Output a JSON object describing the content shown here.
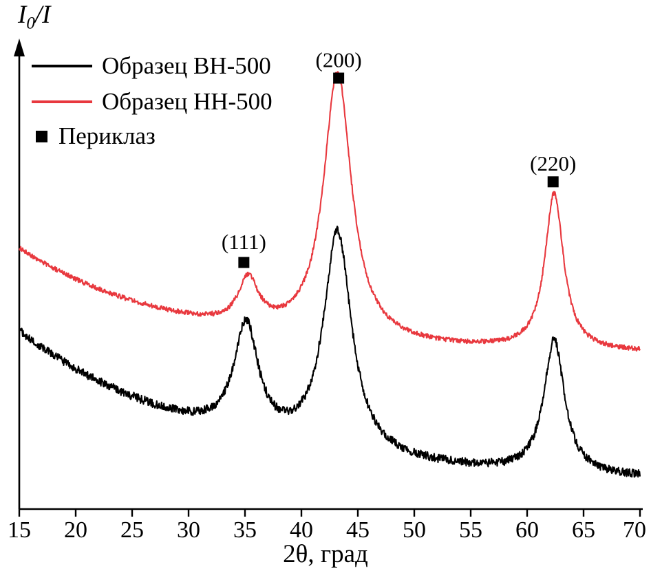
{
  "figure": {
    "background": "#ffffff"
  },
  "chart_data": {
    "type": "line",
    "title": "",
    "xlabel": "2θ, град",
    "ylabel": "I0/I",
    "ylabel_parts": {
      "base": "I",
      "sub": "0",
      "rest": "/I"
    },
    "xlim": [
      15,
      70
    ],
    "ylim": [
      0,
      100
    ],
    "x_ticks": [
      15,
      20,
      25,
      30,
      35,
      40,
      45,
      50,
      55,
      60,
      65,
      70
    ],
    "y_ticks": [],
    "grid": false,
    "y_axis_arrow": true,
    "legend": {
      "position": "top-left",
      "entries": [
        {
          "label": "Образец ВН-500",
          "type": "line",
          "color": "#000000"
        },
        {
          "label": "Образец НН-500",
          "type": "line",
          "color": "#e8383e"
        },
        {
          "label": "Периклаз",
          "type": "square-marker",
          "color": "#000000"
        }
      ]
    },
    "series": [
      {
        "name": "Образец НН-500",
        "slug": "nn-500",
        "color": "#e8383e",
        "baseline": {
          "offset": 33.5,
          "amp": 23,
          "tau": 14
        },
        "peaks": [
          {
            "hkl": "(111)",
            "center": 35.3,
            "amplitude": 10,
            "width": 1.1
          },
          {
            "hkl": "(200)",
            "center": 43.2,
            "amplitude": 58,
            "width": 1.5
          },
          {
            "hkl": "(220)",
            "center": 62.4,
            "amplitude": 34,
            "width": 1.0
          }
        ],
        "noise": 0.5
      },
      {
        "name": "Образец ВН-500",
        "slug": "vn-500",
        "color": "#000000",
        "baseline": {
          "offset": 5.5,
          "amp": 33,
          "tau": 17
        },
        "peaks": [
          {
            "hkl": "(111)",
            "center": 35.1,
            "amplitude": 24,
            "width": 1.3
          },
          {
            "hkl": "(200)",
            "center": 43.2,
            "amplitude": 48,
            "width": 1.5
          },
          {
            "hkl": "(220)",
            "center": 62.4,
            "amplitude": 29,
            "width": 1.1
          }
        ],
        "noise": 0.9
      }
    ],
    "annotations": [
      {
        "label": "(111)",
        "x": 34.9,
        "text_y": 58.0,
        "marker_y": 53.5
      },
      {
        "label": "(200)",
        "x": 43.3,
        "text_y": 97.5,
        "marker_y": 93.5
      },
      {
        "label": "(220)",
        "x": 62.3,
        "text_y": 75.0,
        "marker_y": 71.0
      }
    ],
    "phase_marker": {
      "label": "Периклаз",
      "symbol": "■"
    }
  }
}
